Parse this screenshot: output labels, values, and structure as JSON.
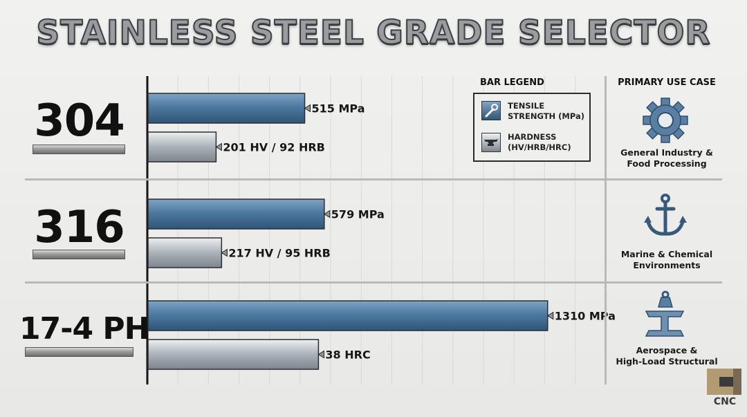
{
  "title": "STAINLESS STEEL GRADE SELECTOR",
  "legend": {
    "title": "BAR LEGEND",
    "items": [
      {
        "line1": "TENSILE",
        "line2": "STRENGTH (MPa)",
        "icon": "wrench-icon",
        "color": "#46729a"
      },
      {
        "line1": "HARDNESS",
        "line2": "(HV/HRB/HRC)",
        "icon": "anvil-icon",
        "color": "#9ea6af"
      }
    ]
  },
  "use_case_header": "PRIMARY USE CASE",
  "grades": [
    {
      "name": "304",
      "use_line1": "General Industry &",
      "use_line2": "Food Processing",
      "use_icon": "gear-icon"
    },
    {
      "name": "316",
      "use_line1": "Marine & Chemical",
      "use_line2": "Environments",
      "use_icon": "anchor-icon"
    },
    {
      "name": "17-4 PH",
      "use_line1": "Aerospace &",
      "use_line2": "High-Load Structural",
      "use_icon": "i-beam-weight-icon"
    }
  ],
  "logo": {
    "text": "CNC"
  },
  "colors": {
    "tensile": "#46729a",
    "hardness": "#a9b0b8",
    "axis": "#151515"
  },
  "chart_data": {
    "type": "bar",
    "orientation": "horizontal",
    "title": "STAINLESS STEEL GRADE SELECTOR",
    "categories": [
      "304",
      "316",
      "17-4 PH"
    ],
    "xlim": [
      0,
      1400
    ],
    "grid": true,
    "legend_position": "top-right",
    "series": [
      {
        "name": "TENSILE STRENGTH (MPa)",
        "values": [
          515,
          579,
          1310
        ],
        "labels": [
          "515 MPa",
          "579 MPa",
          "1310 MPa"
        ]
      },
      {
        "name": "HARDNESS (HV/HRB/HRC)",
        "values": [
          225,
          243,
          560
        ],
        "labels": [
          "201 HV / 92 HRB",
          "217 HV / 95 HRB",
          "38 HRC"
        ]
      }
    ]
  }
}
